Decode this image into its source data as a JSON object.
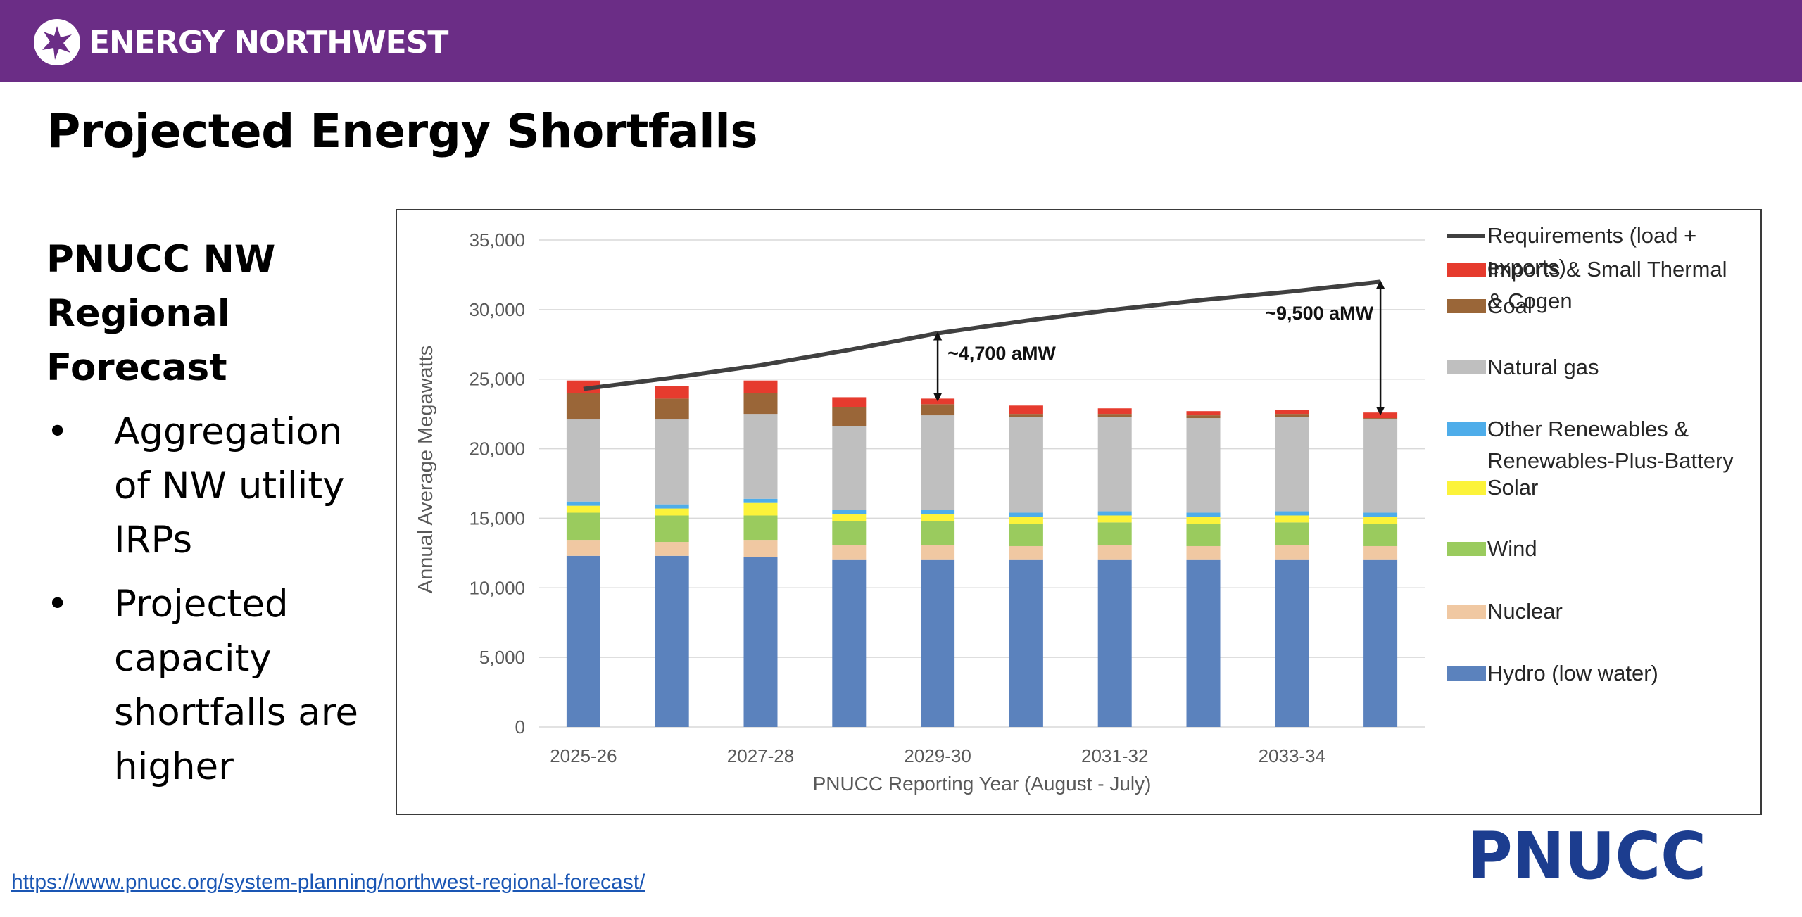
{
  "header": {
    "brand": "ENERGY NORTHWEST",
    "brand_color": "#6b2d86"
  },
  "slide": {
    "title": "Projected Energy Shortfalls",
    "subtitle_line1": "PNUCC NW",
    "subtitle_line2": "Regional Forecast",
    "bullets": [
      {
        "lines": [
          "Aggregation",
          "of NW utility",
          "IRPs"
        ]
      },
      {
        "lines": [
          "Projected",
          "capacity",
          "shortfalls are",
          "higher"
        ]
      }
    ]
  },
  "source_link": "https://www.pnucc.org/system-planning/northwest-regional-forecast/",
  "footer_logo": "PNUCC",
  "chart_data": {
    "type": "bar",
    "stacked": true,
    "title": "",
    "xlabel": "PNUCC Reporting Year (August - July)",
    "ylabel": "Annual Average Megawatts",
    "ylim": [
      0,
      35000
    ],
    "yticks": [
      "0",
      "5,000",
      "10,000",
      "15,000",
      "20,000",
      "25,000",
      "30,000",
      "35,000"
    ],
    "grid": true,
    "legend_position": "right",
    "categories": [
      "2025-26",
      "2026-27",
      "2027-28",
      "2028-29",
      "2029-30",
      "2030-31",
      "2031-32",
      "2032-33",
      "2033-34",
      "2034-35"
    ],
    "tick_labels": [
      "2025-26",
      "",
      "2027-28",
      "",
      "2029-30",
      "",
      "2031-32",
      "",
      "2033-34",
      ""
    ],
    "series": [
      {
        "name": "Hydro (low  water)",
        "color": "#5b82bd",
        "values": [
          12300,
          12300,
          12200,
          12000,
          12000,
          12000,
          12000,
          12000,
          12000,
          12000
        ]
      },
      {
        "name": "Nuclear",
        "color": "#f0c8a2",
        "values": [
          1100,
          1000,
          1200,
          1100,
          1100,
          1000,
          1100,
          1000,
          1100,
          1000
        ]
      },
      {
        "name": "Wind",
        "color": "#9acb5e",
        "values": [
          2000,
          1900,
          1800,
          1700,
          1700,
          1600,
          1600,
          1600,
          1600,
          1600
        ]
      },
      {
        "name": "Solar",
        "color": "#fcf33a",
        "values": [
          500,
          500,
          900,
          500,
          500,
          500,
          500,
          500,
          500,
          500
        ]
      },
      {
        "name": "Other Renewables & Renewables-Plus-Battery",
        "color": "#4eadea",
        "values": [
          300,
          300,
          300,
          300,
          300,
          300,
          300,
          300,
          300,
          300
        ]
      },
      {
        "name": "Natural gas",
        "color": "#bfbfbf",
        "values": [
          5900,
          6100,
          6100,
          6000,
          6800,
          6900,
          6800,
          6800,
          6800,
          6700
        ]
      },
      {
        "name": "Coal",
        "color": "#9a6638",
        "values": [
          1900,
          1500,
          1500,
          1400,
          800,
          200,
          200,
          200,
          200,
          100
        ]
      },
      {
        "name": "Imports & Small Thermal & Cogen",
        "color": "#e63b2e",
        "values": [
          900,
          900,
          900,
          700,
          400,
          600,
          400,
          300,
          300,
          400
        ]
      }
    ],
    "line_series": {
      "name": "Requirements (load + exports)",
      "color": "#404040",
      "values": [
        24300,
        25100,
        26000,
        27100,
        28300,
        29200,
        30000,
        30700,
        31300,
        32000
      ]
    },
    "legend": {
      "requirements": [
        "Requirements (load +",
        "exports)"
      ],
      "imports": [
        "Imports & Small Thermal",
        "& Cogen"
      ],
      "coal": [
        "Coal"
      ],
      "gas": [
        "Natural gas"
      ],
      "other_renewables": [
        " Other Renewables &",
        "Renewables-Plus-Battery"
      ],
      "solar": [
        "Solar"
      ],
      "wind": [
        "Wind"
      ],
      "nuclear": [
        "Nuclear"
      ],
      "hydro": [
        "Hydro (low  water)"
      ]
    },
    "annotations": [
      {
        "text": "~4,700 aMW",
        "index": 4,
        "from": 23500,
        "to": 28300
      },
      {
        "text": "~9,500 aMW",
        "index": 9,
        "from": 22500,
        "to": 32000
      }
    ]
  }
}
